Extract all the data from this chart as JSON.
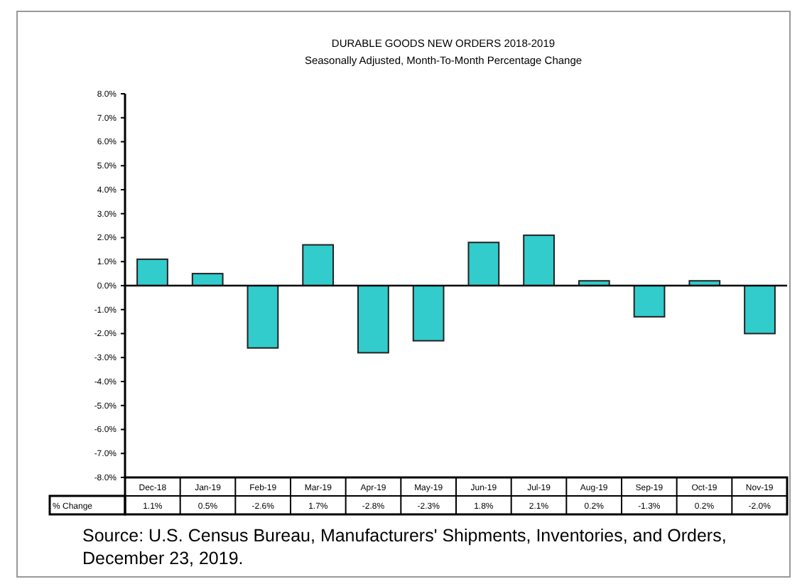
{
  "chart_data": {
    "type": "bar",
    "title": "DURABLE GOODS NEW ORDERS 2018-2019",
    "subtitle": "Seasonally Adjusted,  Month-To-Month  Percentage Change",
    "categories": [
      "Dec-18",
      "Jan-19",
      "Feb-19",
      "Mar-19",
      "Apr-19",
      "May-19",
      "Jun-19",
      "Jul-19",
      "Aug-19",
      "Sep-19",
      "Oct-19",
      "Nov-19"
    ],
    "values": [
      1.1,
      0.5,
      -2.6,
      1.7,
      -2.8,
      -2.3,
      1.8,
      2.1,
      0.2,
      -1.3,
      0.2,
      -2.0
    ],
    "color": "#33cccc",
    "ylim": [
      -8,
      8
    ],
    "yticks": [
      {
        "value": -8,
        "label": "-8.0%"
      },
      {
        "value": -7,
        "label": "-7.0%"
      },
      {
        "value": -6,
        "label": "-6.0%"
      },
      {
        "value": -5,
        "label": "-5.0%"
      },
      {
        "value": -4,
        "label": "-4.0%"
      },
      {
        "value": -3,
        "label": "-3.0%"
      },
      {
        "value": -2,
        "label": "-2.0%"
      },
      {
        "value": -1,
        "label": "-1.0%"
      },
      {
        "value": 0,
        "label": "0.0%"
      },
      {
        "value": 1,
        "label": "1.0%"
      },
      {
        "value": 2,
        "label": "2.0%"
      },
      {
        "value": 3,
        "label": "3.0%"
      },
      {
        "value": 4,
        "label": "4.0%"
      },
      {
        "value": 5,
        "label": "5.0%"
      },
      {
        "value": 6,
        "label": "6.0%"
      },
      {
        "value": 7,
        "label": "7.0%"
      },
      {
        "value": 8,
        "label": "8.0%"
      }
    ],
    "value_labels": [
      "1.1%",
      "0.5%",
      "-2.6%",
      "1.7%",
      "-2.8%",
      "-2.3%",
      "1.8%",
      "2.1%",
      "0.2%",
      "-1.3%",
      "0.2%",
      "-2.0%"
    ],
    "ylabel": "% Change",
    "annotations": [
      "Source: U.S. Census Bureau, Manufacturers' Shipments, Inventories, and Orders, December 23, 2019."
    ]
  }
}
